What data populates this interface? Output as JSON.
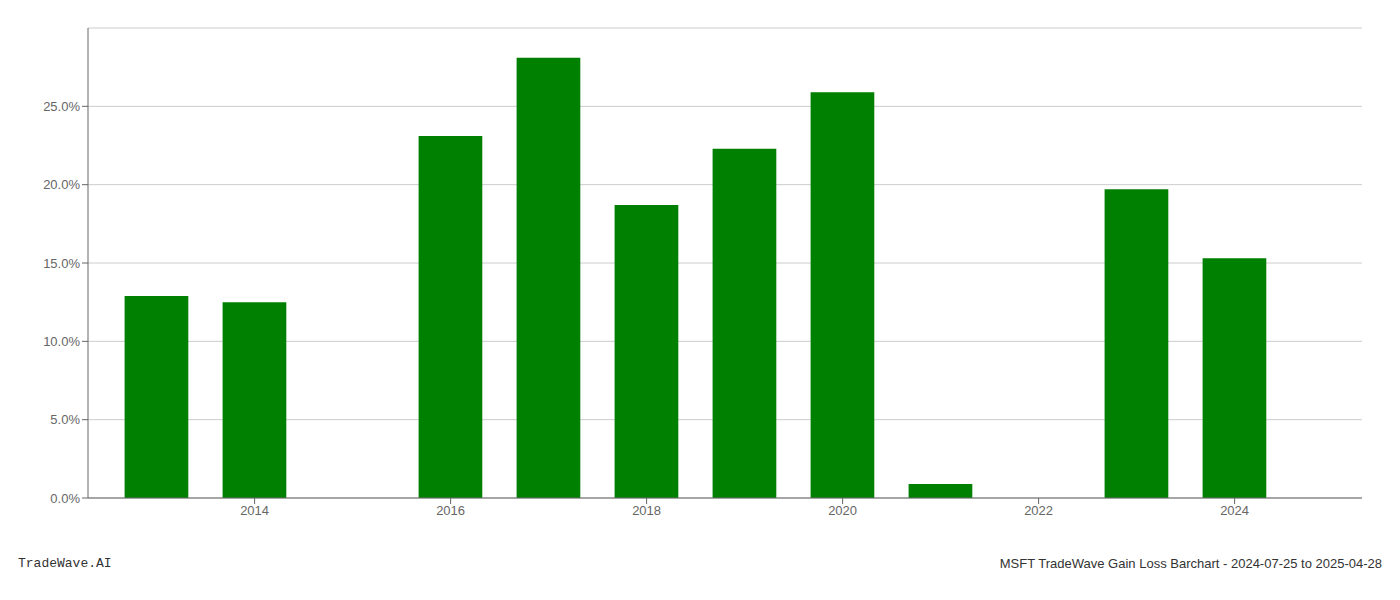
{
  "chart_data": {
    "type": "bar",
    "x": [
      2013,
      2014,
      2015,
      2016,
      2017,
      2018,
      2019,
      2020,
      2021,
      2022,
      2023,
      2024
    ],
    "values": [
      0.129,
      0.125,
      0.0,
      0.231,
      0.281,
      0.187,
      0.223,
      0.259,
      0.009,
      0.0,
      0.197,
      0.153
    ],
    "color": "#008000",
    "xlim": [
      2012.3,
      2025.3
    ],
    "xticks": [
      2014,
      2016,
      2018,
      2020,
      2022,
      2024
    ],
    "ylim": [
      0,
      0.3
    ],
    "yticks": [
      {
        "value": 0.0,
        "label": "0.0%"
      },
      {
        "value": 0.05,
        "label": "5.0%"
      },
      {
        "value": 0.1,
        "label": "10.0%"
      },
      {
        "value": 0.15,
        "label": "15.0%"
      },
      {
        "value": 0.2,
        "label": "20.0%"
      },
      {
        "value": 0.25,
        "label": "25.0%"
      }
    ],
    "grid": true,
    "annotations": [
      "TradeWave.AI",
      "MSFT TradeWave Gain Loss Barchart - 2024-07-25 to 2025-04-28"
    ]
  }
}
